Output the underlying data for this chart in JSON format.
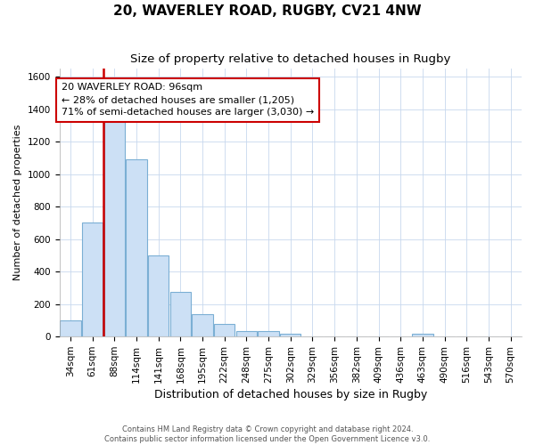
{
  "title": "20, WAVERLEY ROAD, RUGBY, CV21 4NW",
  "subtitle": "Size of property relative to detached houses in Rugby",
  "xlabel": "Distribution of detached houses by size in Rugby",
  "ylabel": "Number of detached properties",
  "footer_line1": "Contains HM Land Registry data © Crown copyright and database right 2024.",
  "footer_line2": "Contains public sector information licensed under the Open Government Licence v3.0.",
  "categories": [
    "34sqm",
    "61sqm",
    "88sqm",
    "114sqm",
    "141sqm",
    "168sqm",
    "195sqm",
    "222sqm",
    "248sqm",
    "275sqm",
    "302sqm",
    "329sqm",
    "356sqm",
    "382sqm",
    "409sqm",
    "436sqm",
    "463sqm",
    "490sqm",
    "516sqm",
    "543sqm",
    "570sqm"
  ],
  "bar_values": [
    100,
    700,
    1340,
    1090,
    500,
    275,
    140,
    80,
    35,
    35,
    20,
    0,
    0,
    0,
    0,
    0,
    20,
    0,
    0,
    0,
    0
  ],
  "bar_color": "#cce0f5",
  "bar_edge_color": "#7bafd4",
  "ylim": [
    0,
    1650
  ],
  "yticks": [
    0,
    200,
    400,
    600,
    800,
    1000,
    1200,
    1400,
    1600
  ],
  "vline_color": "#cc0000",
  "annotation_text": "20 WAVERLEY ROAD: 96sqm\n← 28% of detached houses are smaller (1,205)\n71% of semi-detached houses are larger (3,030) →",
  "title_fontsize": 11,
  "subtitle_fontsize": 9.5,
  "ylabel_fontsize": 8,
  "xlabel_fontsize": 9,
  "tick_fontsize": 7.5,
  "annotation_fontsize": 8,
  "grid_color": "#c8d8ee",
  "background_color": "#ffffff"
}
